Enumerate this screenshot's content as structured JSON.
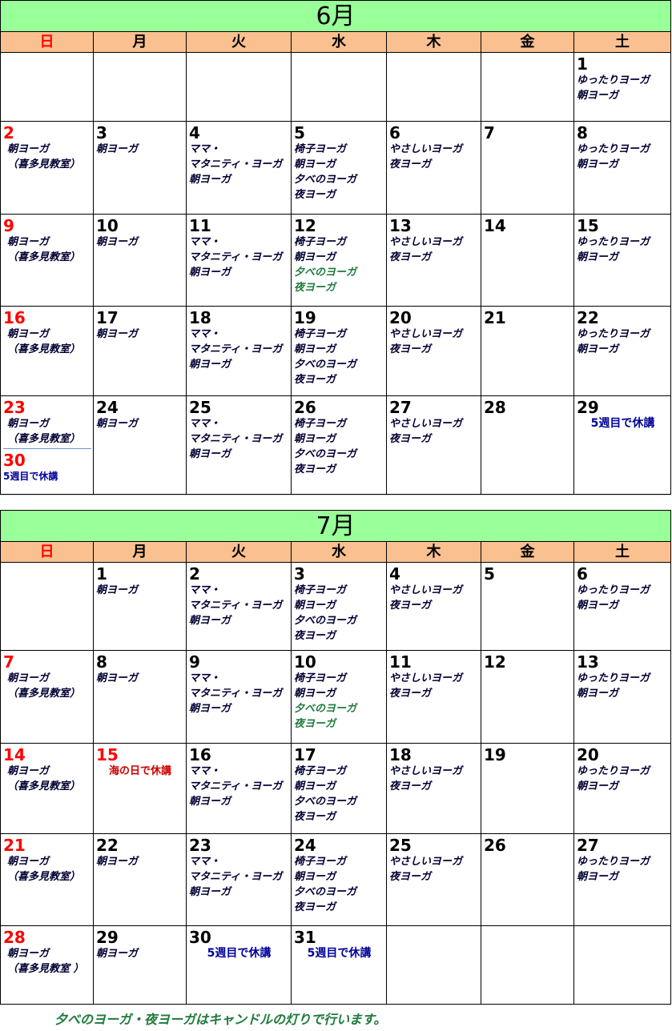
{
  "weekdays": [
    "日",
    "月",
    "火",
    "水",
    "木",
    "金",
    "土"
  ],
  "months": [
    {
      "title": "6月",
      "weeks": [
        [
          {
            "d": "",
            "lines": []
          },
          {
            "d": "",
            "lines": []
          },
          {
            "d": "",
            "lines": []
          },
          {
            "d": "",
            "lines": []
          },
          {
            "d": "",
            "lines": []
          },
          {
            "d": "",
            "lines": []
          },
          {
            "d": "1",
            "lines": [
              "ゆったりヨーガ",
              "朝ヨーガ"
            ]
          }
        ],
        [
          {
            "d": "2",
            "lines": [
              "朝ヨーガ",
              "（喜多見教室）"
            ]
          },
          {
            "d": "3",
            "lines": [
              "朝ヨーガ"
            ]
          },
          {
            "d": "4",
            "lines": [
              "ママ・",
              "マタニティ・ヨーガ",
              "朝ヨーガ"
            ]
          },
          {
            "d": "5",
            "lines": [
              "椅子ヨーガ",
              "朝ヨーガ",
              "夕べのヨーガ",
              "夜ヨーガ"
            ]
          },
          {
            "d": "6",
            "lines": [
              "やさしいヨーガ",
              "夜ヨーガ"
            ]
          },
          {
            "d": "7",
            "lines": []
          },
          {
            "d": "8",
            "lines": [
              "ゆったりヨーガ",
              "朝ヨーガ"
            ]
          }
        ],
        [
          {
            "d": "9",
            "lines": [
              "朝ヨーガ",
              "（喜多見教室）"
            ]
          },
          {
            "d": "10",
            "lines": [
              "朝ヨーガ"
            ]
          },
          {
            "d": "11",
            "lines": [
              "ママ・",
              "マタニティ・ヨーガ",
              "朝ヨーガ"
            ]
          },
          {
            "d": "12",
            "lines": [
              "椅子ヨーガ",
              "朝ヨーガ"
            ],
            "green": [
              "夕べのヨーガ",
              "夜ヨーガ"
            ]
          },
          {
            "d": "13",
            "lines": [
              "やさしいヨーガ",
              "夜ヨーガ"
            ]
          },
          {
            "d": "14",
            "lines": []
          },
          {
            "d": "15",
            "lines": [
              "ゆったりヨーガ",
              "朝ヨーガ"
            ]
          }
        ],
        [
          {
            "d": "16",
            "lines": [
              "朝ヨーガ",
              "（喜多見教室）"
            ]
          },
          {
            "d": "17",
            "lines": [
              "朝ヨーガ"
            ]
          },
          {
            "d": "18",
            "lines": [
              "ママ・",
              "マタニティ・ヨーガ",
              "朝ヨーガ"
            ]
          },
          {
            "d": "19",
            "lines": [
              "椅子ヨーガ",
              "朝ヨーガ",
              "夕べのヨーガ",
              "夜ヨーガ"
            ]
          },
          {
            "d": "20",
            "lines": [
              "やさしいヨーガ",
              "夜ヨーガ"
            ]
          },
          {
            "d": "21",
            "lines": []
          },
          {
            "d": "22",
            "lines": [
              "ゆったりヨーガ",
              "朝ヨーガ"
            ]
          }
        ],
        [
          {
            "d": "23",
            "lines": [
              "朝ヨーガ",
              "（喜多見教室）"
            ],
            "d2": "30",
            "note2": "5週目で休講"
          },
          {
            "d": "24",
            "lines": [
              "朝ヨーガ"
            ]
          },
          {
            "d": "25",
            "lines": [
              "ママ・",
              "マタニティ・ヨーガ",
              "朝ヨーガ"
            ]
          },
          {
            "d": "26",
            "lines": [
              "椅子ヨーガ",
              "朝ヨーガ",
              "夕べのヨーガ",
              "夜ヨーガ"
            ]
          },
          {
            "d": "27",
            "lines": [
              "やさしいヨーガ",
              "夜ヨーガ"
            ]
          },
          {
            "d": "28",
            "lines": []
          },
          {
            "d": "29",
            "lines": [],
            "note": "5週目で休講"
          }
        ]
      ]
    },
    {
      "title": "7月",
      "weeks": [
        [
          {
            "d": "",
            "lines": []
          },
          {
            "d": "1",
            "lines": [
              "朝ヨーガ"
            ]
          },
          {
            "d": "2",
            "lines": [
              "ママ・",
              "マタニティ・ヨーガ",
              "朝ヨーガ"
            ]
          },
          {
            "d": "3",
            "lines": [
              "椅子ヨーガ",
              "朝ヨーガ",
              "夕べのヨーガ",
              "夜ヨーガ"
            ]
          },
          {
            "d": "4",
            "lines": [
              "やさしいヨーガ",
              "夜ヨーガ"
            ]
          },
          {
            "d": "5",
            "lines": []
          },
          {
            "d": "6",
            "lines": [
              "ゆったりヨーガ",
              "朝ヨーガ"
            ]
          }
        ],
        [
          {
            "d": "7",
            "lines": [
              "朝ヨーガ",
              "（喜多見教室）"
            ]
          },
          {
            "d": "8",
            "lines": [
              "朝ヨーガ"
            ]
          },
          {
            "d": "9",
            "lines": [
              "ママ・",
              "マタニティ・ヨーガ",
              "朝ヨーガ"
            ]
          },
          {
            "d": "10",
            "lines": [
              "椅子ヨーガ",
              "朝ヨーガ"
            ],
            "green": [
              "夕べのヨーガ",
              "夜ヨーガ"
            ]
          },
          {
            "d": "11",
            "lines": [
              "やさしいヨーガ",
              "夜ヨーガ"
            ]
          },
          {
            "d": "12",
            "lines": []
          },
          {
            "d": "13",
            "lines": [
              "ゆったりヨーガ",
              "朝ヨーガ"
            ]
          }
        ],
        [
          {
            "d": "14",
            "lines": [
              "朝ヨーガ",
              "（喜多見教室）"
            ]
          },
          {
            "d": "15",
            "lines": [],
            "holiday": true,
            "note_red": "海の日で休講"
          },
          {
            "d": "16",
            "lines": [
              "ママ・",
              "マタニティ・ヨーガ",
              "朝ヨーガ"
            ]
          },
          {
            "d": "17",
            "lines": [
              "椅子ヨーガ",
              "朝ヨーガ",
              "夕べのヨーガ",
              "夜ヨーガ"
            ]
          },
          {
            "d": "18",
            "lines": [
              "やさしいヨーガ",
              "夜ヨーガ"
            ]
          },
          {
            "d": "19",
            "lines": []
          },
          {
            "d": "20",
            "lines": [
              "ゆったりヨーガ",
              "朝ヨーガ"
            ]
          }
        ],
        [
          {
            "d": "21",
            "lines": [
              "朝ヨーガ",
              "（喜多見教室）"
            ]
          },
          {
            "d": "22",
            "lines": [
              "朝ヨーガ"
            ]
          },
          {
            "d": "23",
            "lines": [
              "ママ・",
              "マタニティ・ヨーガ",
              "朝ヨーガ"
            ]
          },
          {
            "d": "24",
            "lines": [
              "椅子ヨーガ",
              "朝ヨーガ",
              "夕べのヨーガ",
              "夜ヨーガ"
            ]
          },
          {
            "d": "25",
            "lines": [
              "やさしいヨーガ",
              "夜ヨーガ"
            ]
          },
          {
            "d": "26",
            "lines": []
          },
          {
            "d": "27",
            "lines": [
              "ゆったりヨーガ",
              "朝ヨーガ"
            ]
          }
        ],
        [
          {
            "d": "28",
            "lines": [
              "朝ヨーガ",
              "（喜多見教室 ）"
            ]
          },
          {
            "d": "29",
            "lines": [
              "朝ヨーガ"
            ]
          },
          {
            "d": "30",
            "lines": [],
            "note": "5週目で休講"
          },
          {
            "d": "31",
            "lines": [],
            "note": "5週目で休講"
          },
          {
            "d": "",
            "lines": []
          },
          {
            "d": "",
            "lines": []
          },
          {
            "d": "",
            "lines": []
          }
        ]
      ]
    }
  ],
  "footer": "夕べのヨーガ・夜ヨーガはキャンドルの灯りで行います。"
}
